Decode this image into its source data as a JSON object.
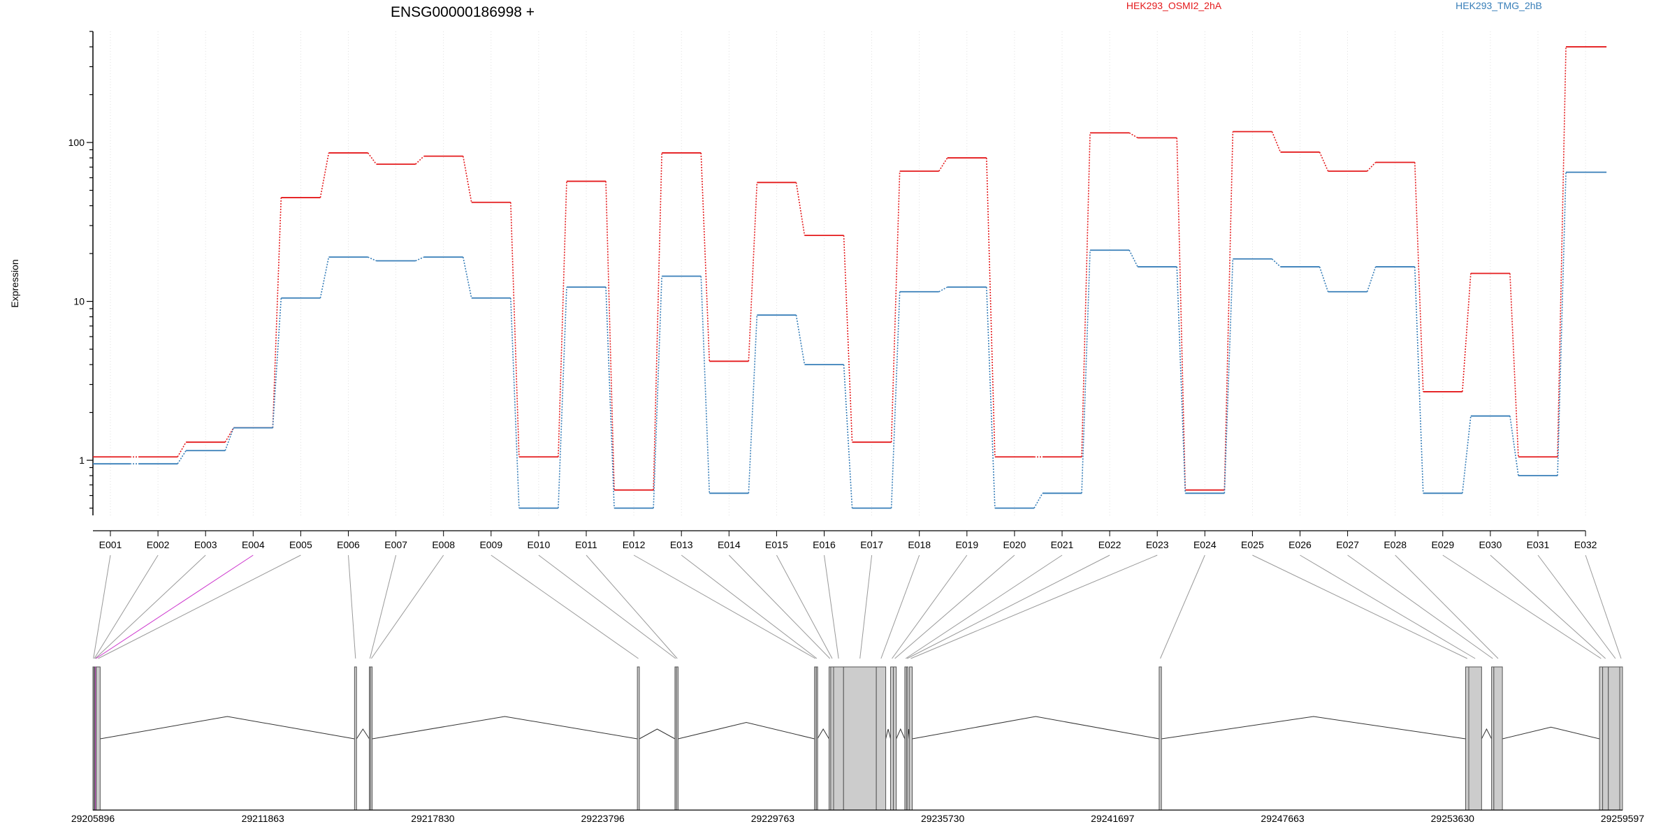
{
  "chart_data": {
    "type": "line",
    "title": "ENSG00000186998 +",
    "ylabel": "Expression",
    "yscale": "log",
    "ylim": [
      0.45,
      500
    ],
    "ytick_labels": [
      "1",
      "10",
      "100"
    ],
    "ytick_values": [
      1,
      10,
      100
    ],
    "grid": "vertical dotted",
    "legend_position": "top",
    "categories": [
      "E001",
      "E002",
      "E003",
      "E004",
      "E005",
      "E006",
      "E007",
      "E008",
      "E009",
      "E010",
      "E011",
      "E012",
      "E013",
      "E014",
      "E015",
      "E016",
      "E017",
      "E018",
      "E019",
      "E020",
      "E021",
      "E022",
      "E023",
      "E024",
      "E025",
      "E026",
      "E027",
      "E028",
      "E029",
      "E030",
      "E031",
      "E032"
    ],
    "series": [
      {
        "name": "HEK293_OSMI2_2hA",
        "color": "#e41a1c",
        "values": [
          1.05,
          1.05,
          1.3,
          1.6,
          45,
          86,
          73,
          82,
          42,
          1.05,
          57,
          0.65,
          86,
          4.2,
          56,
          26,
          1.3,
          66,
          80,
          1.05,
          1.05,
          115,
          107,
          0.65,
          117,
          87,
          66,
          75,
          2.7,
          15,
          1.05,
          400
        ]
      },
      {
        "name": "HEK293_TMG_2hB",
        "color": "#377eb8",
        "values": [
          0.95,
          0.95,
          1.15,
          1.6,
          10.5,
          19,
          18,
          19,
          10.5,
          0.5,
          12.3,
          0.5,
          14.4,
          0.62,
          8.2,
          4.0,
          0.5,
          11.5,
          12.3,
          0.5,
          0.62,
          21,
          16.5,
          0.62,
          18.5,
          16.5,
          11.5,
          16.5,
          0.62,
          1.9,
          0.8,
          65
        ]
      }
    ],
    "gene_model": {
      "coordinate_labels": [
        "29205896",
        "29211863",
        "29217830",
        "29223796",
        "29229763",
        "29235730",
        "29241697",
        "29247663",
        "29253630",
        "29259597"
      ],
      "coord_start": 29205896,
      "coord_end": 29259597,
      "exon_colors": {
        "fill": "#cccccc",
        "stroke": "#555555",
        "highlight": "#cc33cc"
      },
      "highlighted_exon": "E004",
      "exon_genomic_spans": [
        [
          29205896,
          29205930
        ],
        [
          29205930,
          29205960
        ],
        [
          29205960,
          29205990
        ],
        [
          29205990,
          29206010
        ],
        [
          29206010,
          29206150
        ],
        [
          29215080,
          29215150
        ],
        [
          29215600,
          29215640
        ],
        [
          29215640,
          29215700
        ],
        [
          29225010,
          29225080
        ],
        [
          29226330,
          29226380
        ],
        [
          29226380,
          29226440
        ],
        [
          29231230,
          29231290
        ],
        [
          29231290,
          29231330
        ],
        [
          29231740,
          29231800
        ],
        [
          29231800,
          29231900
        ],
        [
          29231900,
          29232250
        ],
        [
          29232250,
          29233400
        ],
        [
          29233400,
          29233730
        ],
        [
          29233900,
          29234000
        ],
        [
          29234000,
          29234100
        ],
        [
          29234400,
          29234460
        ],
        [
          29234460,
          29234500
        ],
        [
          29234560,
          29234660
        ],
        [
          29243330,
          29243410
        ],
        [
          29254090,
          29254200
        ],
        [
          29254200,
          29254650
        ],
        [
          29255000,
          29255080
        ],
        [
          29255080,
          29255380
        ],
        [
          29258790,
          29258900
        ],
        [
          29258900,
          29259100
        ],
        [
          29259100,
          29259597
        ],
        [
          29259500,
          29259597
        ]
      ]
    }
  }
}
